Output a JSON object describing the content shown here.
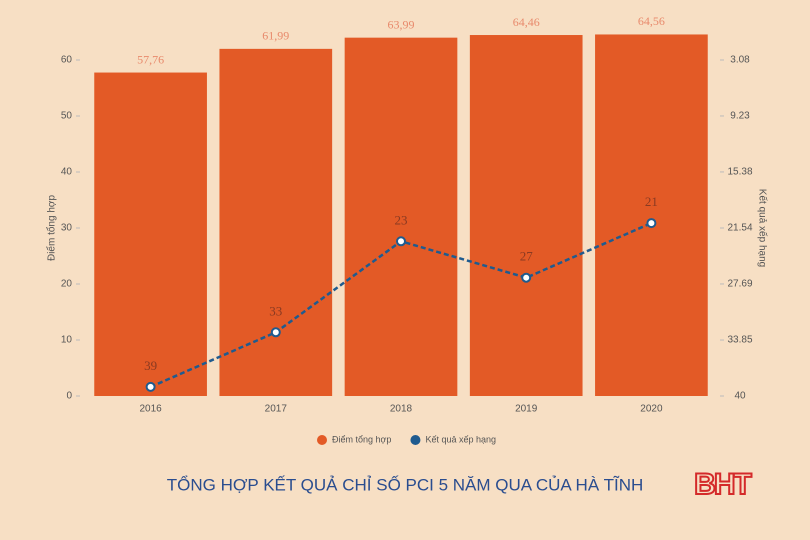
{
  "chart_data": {
    "type": "bar",
    "title": "TỔNG HỢP KẾT QUẢ CHỈ SỐ PCI 5 NĂM QUA CỦA HÀ TĨNH",
    "logo": "BHT",
    "ylabel": "Điểm tổng hợp",
    "y2label": "Kết quả xếp hạng",
    "categories": [
      "2016",
      "2017",
      "2018",
      "2019",
      "2020"
    ],
    "series": [
      {
        "name": "Điểm tổng hợp",
        "type": "bar",
        "color": "#e35a26",
        "values": [
          57.76,
          61.99,
          63.99,
          64.46,
          64.56
        ],
        "value_labels": [
          "57,76",
          "61,99",
          "63,99",
          "64,46",
          "64,56"
        ]
      },
      {
        "name": "Kết quả xếp hạng",
        "type": "line",
        "axis": "y2",
        "color": "#1f5b8f",
        "values": [
          39,
          33,
          23,
          27,
          21
        ]
      }
    ],
    "ylim": [
      0,
      60
    ],
    "yticks": [
      0,
      10,
      20,
      30,
      40,
      50,
      60
    ],
    "y2lim": [
      40,
      3.08
    ],
    "y2ticks": [
      40,
      33.85,
      27.69,
      21.54,
      15.38,
      9.23,
      3.08
    ],
    "grid": false,
    "legend": "bottom"
  }
}
